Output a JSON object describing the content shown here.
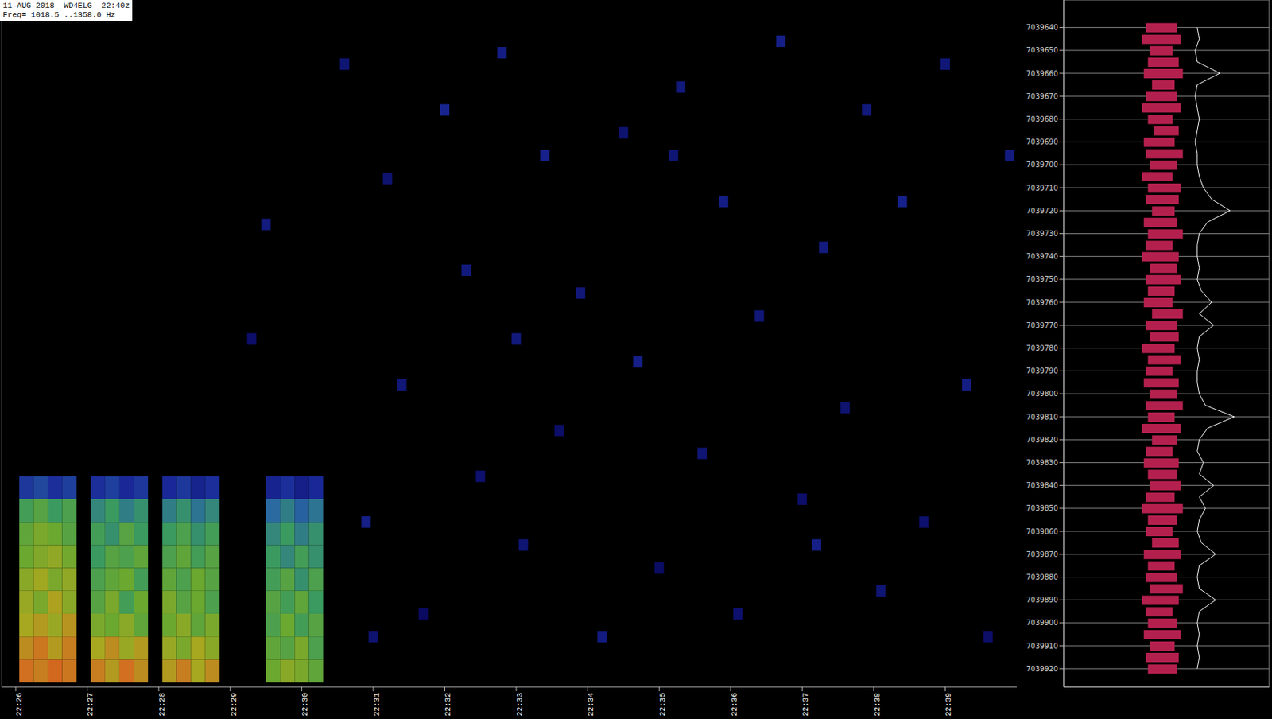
{
  "chart_data": [
    {
      "type": "heatmap",
      "title": [
        "11-AUG-2018  WD4ELG  22:40z",
        "Freq= 1018.5 ..1358.0 Hz"
      ],
      "xlim": [
        25.8,
        40.0
      ],
      "xticks": [
        {
          "value": 26,
          "label": "22:26"
        },
        {
          "value": 27,
          "label": "22:27"
        },
        {
          "value": 28,
          "label": "22:28"
        },
        {
          "value": 29,
          "label": "22:29"
        },
        {
          "value": 30,
          "label": "22:30"
        },
        {
          "value": 31,
          "label": "22:31"
        },
        {
          "value": 32,
          "label": "22:32"
        },
        {
          "value": 33,
          "label": "22:33"
        },
        {
          "value": 34,
          "label": "22:34"
        },
        {
          "value": 35,
          "label": "22:35"
        },
        {
          "value": 36,
          "label": "22:36"
        },
        {
          "value": 37,
          "label": "22:37"
        },
        {
          "value": 38,
          "label": "22:38"
        },
        {
          "value": 39,
          "label": "22:39"
        }
      ],
      "ylim": [
        7039628,
        7039928
      ],
      "tick_labels": "x",
      "zlim": [
        0,
        100
      ],
      "signal": [
        {
          "t": [
            26.15,
            26.35,
            26.55,
            26.75
          ],
          "f": [
            7039635,
            7039645,
            7039655,
            7039665,
            7039675,
            7039685,
            7039695,
            7039705,
            7039715
          ],
          "v": [
            [
              86,
              84,
              88,
              85
            ],
            [
              82,
              85,
              80,
              84
            ],
            [
              78,
              80,
              76,
              81
            ],
            [
              76,
              72,
              79,
              74
            ],
            [
              74,
              77,
              72,
              75
            ],
            [
              70,
              73,
              75,
              71
            ],
            [
              68,
              72,
              70,
              66
            ],
            [
              62,
              66,
              60,
              64
            ],
            [
              38,
              42,
              36,
              40
            ]
          ]
        },
        {
          "t": [
            27.15,
            27.35,
            27.55,
            27.75
          ],
          "f": [
            7039635,
            7039645,
            7039655,
            7039665,
            7039675,
            7039685,
            7039695,
            7039705,
            7039715
          ],
          "v": [
            [
              84,
              80,
              86,
              82
            ],
            [
              78,
              82,
              76,
              80
            ],
            [
              72,
              70,
              74,
              68
            ],
            [
              66,
              72,
              62,
              70
            ],
            [
              64,
              68,
              70,
              62
            ],
            [
              60,
              66,
              64,
              68
            ],
            [
              62,
              58,
              66,
              60
            ],
            [
              56,
              60,
              54,
              58
            ],
            [
              36,
              40,
              34,
              38
            ]
          ]
        },
        {
          "t": [
            28.15,
            28.35,
            28.55,
            28.75
          ],
          "f": [
            7039635,
            7039645,
            7039655,
            7039665,
            7039675,
            7039685,
            7039695,
            7039705,
            7039715
          ],
          "v": [
            [
              80,
              84,
              78,
              82
            ],
            [
              76,
              72,
              78,
              74
            ],
            [
              70,
              74,
              68,
              72
            ],
            [
              72,
              66,
              70,
              64
            ],
            [
              68,
              64,
              70,
              66
            ],
            [
              64,
              68,
              62,
              66
            ],
            [
              60,
              64,
              58,
              62
            ],
            [
              54,
              58,
              52,
              56
            ],
            [
              34,
              38,
              32,
              36
            ]
          ]
        },
        {
          "t": [
            29.6,
            29.8,
            30.0,
            30.2
          ],
          "f": [
            7039635,
            7039645,
            7039655,
            7039665,
            7039675,
            7039685,
            7039695,
            7039705,
            7039715
          ],
          "v": [
            [
              70,
              74,
              72,
              68
            ],
            [
              68,
              66,
              72,
              64
            ],
            [
              64,
              70,
              62,
              66
            ],
            [
              66,
              62,
              68,
              60
            ],
            [
              62,
              66,
              58,
              64
            ],
            [
              60,
              56,
              62,
              58
            ],
            [
              56,
              60,
              54,
              58
            ],
            [
              50,
              54,
              48,
              52
            ],
            [
              32,
              36,
              30,
              34
            ]
          ]
        }
      ],
      "noise": {
        "t": [
          29.3,
          29.5,
          30.6,
          30.9,
          31.2,
          31.4,
          31.7,
          32.0,
          32.3,
          32.5,
          32.8,
          33.1,
          33.4,
          33.6,
          33.9,
          34.2,
          34.5,
          34.7,
          35.0,
          35.3,
          35.6,
          35.9,
          36.1,
          36.4,
          36.7,
          37.0,
          37.3,
          37.6,
          37.9,
          38.1,
          38.4,
          38.7,
          39.0,
          39.3,
          39.6,
          39.9,
          31.0,
          33.0,
          35.2,
          37.2
        ],
        "f": [
          7039780,
          7039830,
          7039900,
          7039700,
          7039850,
          7039760,
          7039660,
          7039880,
          7039810,
          7039720,
          7039905,
          7039690,
          7039860,
          7039740,
          7039800,
          7039650,
          7039870,
          7039770,
          7039680,
          7039890,
          7039730,
          7039840,
          7039660,
          7039790,
          7039910,
          7039710,
          7039820,
          7039750,
          7039880,
          7039670,
          7039840,
          7039700,
          7039900,
          7039760,
          7039650,
          7039860,
          7039650,
          7039780,
          7039860,
          7039690
        ],
        "v": [
          22,
          28,
          25,
          30,
          24,
          26,
          20,
          32,
          27,
          23,
          29,
          25,
          31,
          22,
          26,
          28,
          24,
          30,
          21,
          27,
          25,
          29,
          23,
          26,
          30,
          22,
          28,
          24,
          27,
          25,
          31,
          23,
          26,
          29,
          22,
          28,
          24,
          27,
          25,
          30
        ]
      }
    },
    {
      "type": "line",
      "orientation": "horizontal",
      "grid": true,
      "tick_labels": "y",
      "ylim": [
        7039628,
        7039928
      ],
      "yticks": [
        7039640,
        7039650,
        7039660,
        7039670,
        7039680,
        7039690,
        7039700,
        7039710,
        7039720,
        7039730,
        7039740,
        7039750,
        7039760,
        7039770,
        7039780,
        7039790,
        7039800,
        7039810,
        7039820,
        7039830,
        7039840,
        7039850,
        7039860,
        7039870,
        7039880,
        7039890,
        7039900,
        7039910,
        7039920
      ],
      "xlim": [
        0,
        100
      ],
      "xticks": [
        0,
        10,
        20,
        30,
        40,
        50,
        60,
        70,
        80,
        90,
        100
      ],
      "y": [
        7039640,
        7039645,
        7039650,
        7039655,
        7039660,
        7039665,
        7039670,
        7039675,
        7039680,
        7039685,
        7039690,
        7039695,
        7039700,
        7039705,
        7039710,
        7039715,
        7039720,
        7039725,
        7039730,
        7039735,
        7039740,
        7039745,
        7039750,
        7039755,
        7039760,
        7039765,
        7039770,
        7039775,
        7039780,
        7039785,
        7039790,
        7039795,
        7039800,
        7039805,
        7039810,
        7039815,
        7039820,
        7039825,
        7039830,
        7039835,
        7039840,
        7039845,
        7039850,
        7039855,
        7039860,
        7039865,
        7039870,
        7039875,
        7039880,
        7039885,
        7039890,
        7039895,
        7039900,
        7039905,
        7039910,
        7039915,
        7039920
      ],
      "series": [
        {
          "type": "line",
          "color": "#ffffff",
          "values": [
            65,
            66,
            64,
            65,
            76,
            65,
            64,
            65,
            66,
            65,
            64,
            65,
            65,
            66,
            68,
            72,
            81,
            70,
            66,
            65,
            65,
            66,
            65,
            67,
            72,
            66,
            73,
            66,
            65,
            66,
            65,
            65,
            66,
            69,
            83,
            70,
            66,
            65,
            68,
            66,
            73,
            66,
            69,
            66,
            65,
            67,
            74,
            66,
            65,
            66,
            74,
            66,
            65,
            66,
            65,
            66,
            65
          ]
        },
        {
          "type": "bar",
          "color": "#b4204e",
          "low": [
            40,
            38,
            42,
            41,
            39,
            43,
            40,
            38,
            41,
            44,
            39,
            40,
            42,
            38,
            41,
            40,
            43,
            39,
            41,
            40,
            38,
            42,
            40,
            41,
            39,
            43,
            40,
            42,
            38,
            41,
            40,
            39,
            42,
            40,
            41,
            38,
            43,
            40,
            39,
            41,
            42,
            40,
            38,
            41,
            40,
            43,
            39,
            41,
            40,
            42,
            38,
            40,
            41,
            39,
            42,
            40,
            41
          ],
          "high": [
            55,
            57,
            53,
            56,
            58,
            54,
            55,
            57,
            53,
            56,
            54,
            58,
            55,
            53,
            57,
            56,
            54,
            55,
            58,
            53,
            56,
            55,
            57,
            54,
            53,
            58,
            55,
            56,
            54,
            57,
            53,
            56,
            55,
            58,
            54,
            57,
            55,
            53,
            56,
            55,
            57,
            54,
            58,
            55,
            53,
            56,
            57,
            54,
            55,
            58,
            56,
            53,
            55,
            57,
            54,
            56,
            55
          ]
        }
      ]
    }
  ]
}
